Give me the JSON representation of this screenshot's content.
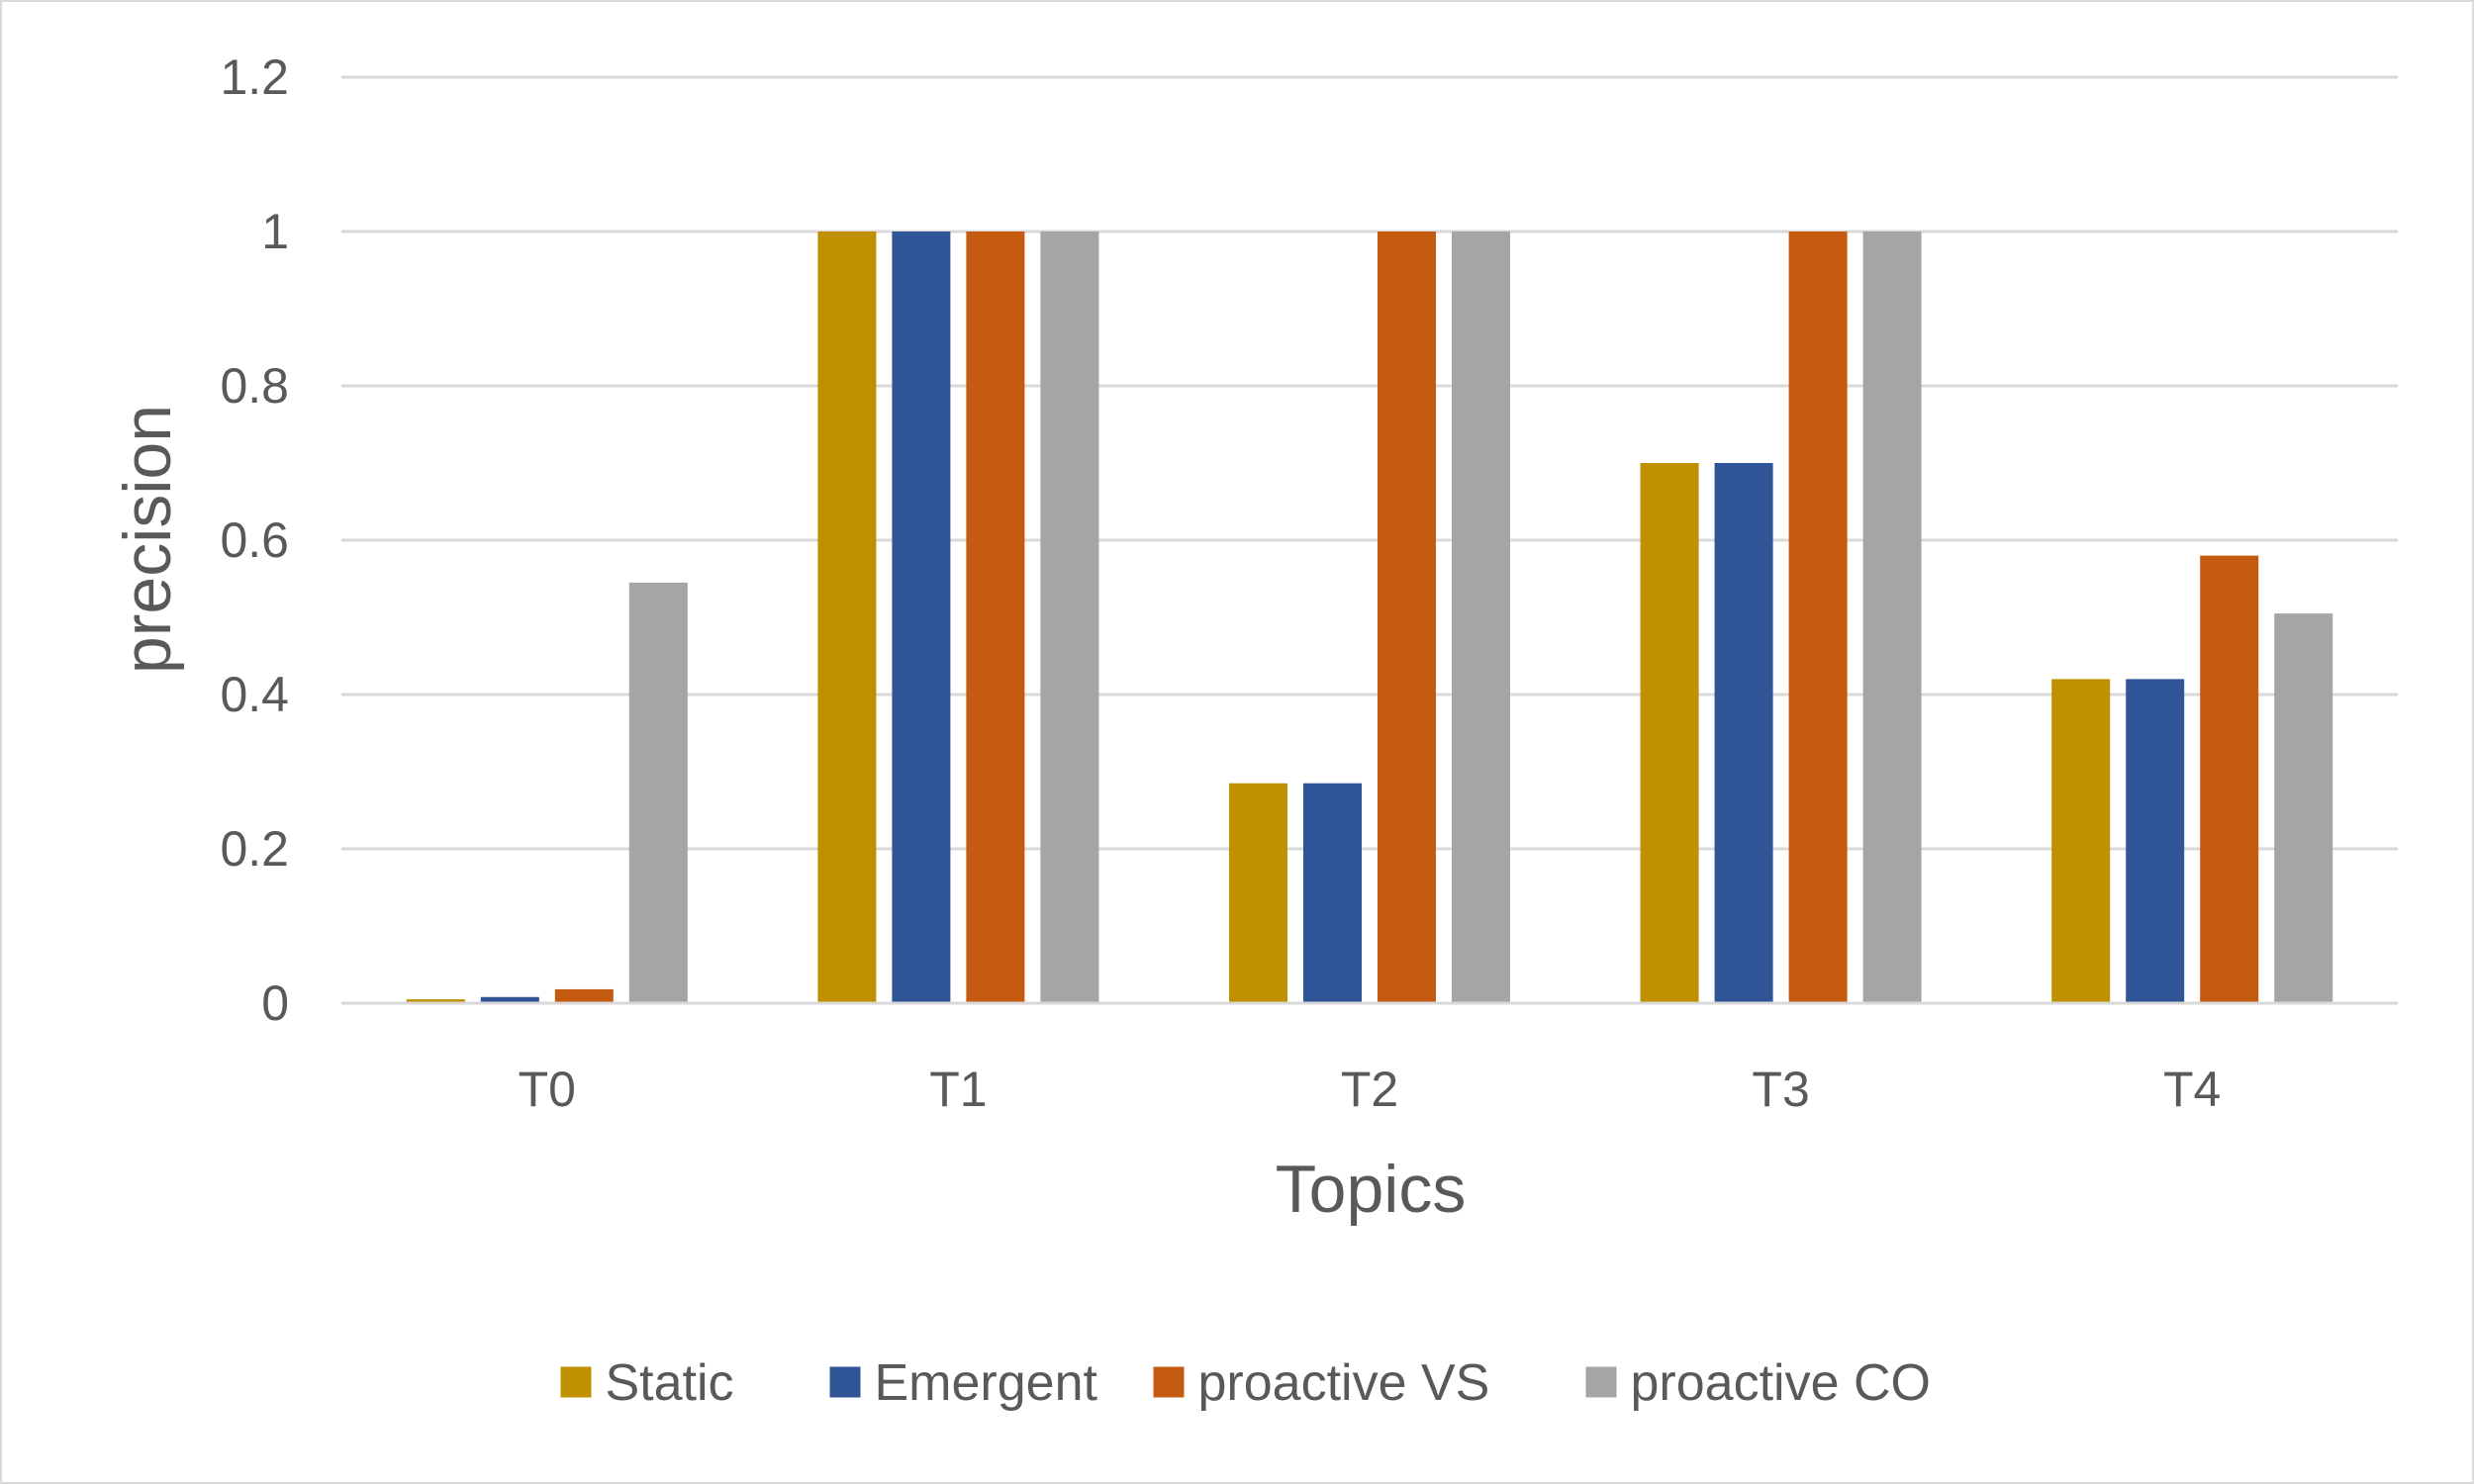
{
  "chart_data": {
    "type": "bar",
    "title": "",
    "xlabel": "Topics",
    "ylabel": "precision",
    "ylim": [
      0,
      1.2
    ],
    "yticks": [
      0,
      0.2,
      0.4,
      0.6,
      0.8,
      1,
      1.2
    ],
    "ytick_labels": [
      "0",
      "0.2",
      "0.4",
      "0.6",
      "0.8",
      "1",
      "1.2"
    ],
    "grid": true,
    "legend_position": "bottom",
    "categories": [
      "T0",
      "T1",
      "T2",
      "T3",
      "T4"
    ],
    "series": [
      {
        "name": "Static",
        "color": "#bf9000",
        "values": [
          0.005,
          1.0,
          0.285,
          0.7,
          0.42
        ]
      },
      {
        "name": "Emergent",
        "color": "#2f5597",
        "values": [
          0.008,
          1.0,
          0.285,
          0.7,
          0.42
        ]
      },
      {
        "name": "proactive VS",
        "color": "#c55a11",
        "values": [
          0.018,
          1.0,
          1.0,
          1.0,
          0.58
        ]
      },
      {
        "name": "proactive CO",
        "color": "#a5a5a5",
        "values": [
          0.545,
          1.0,
          1.0,
          1.0,
          0.505
        ]
      }
    ]
  }
}
